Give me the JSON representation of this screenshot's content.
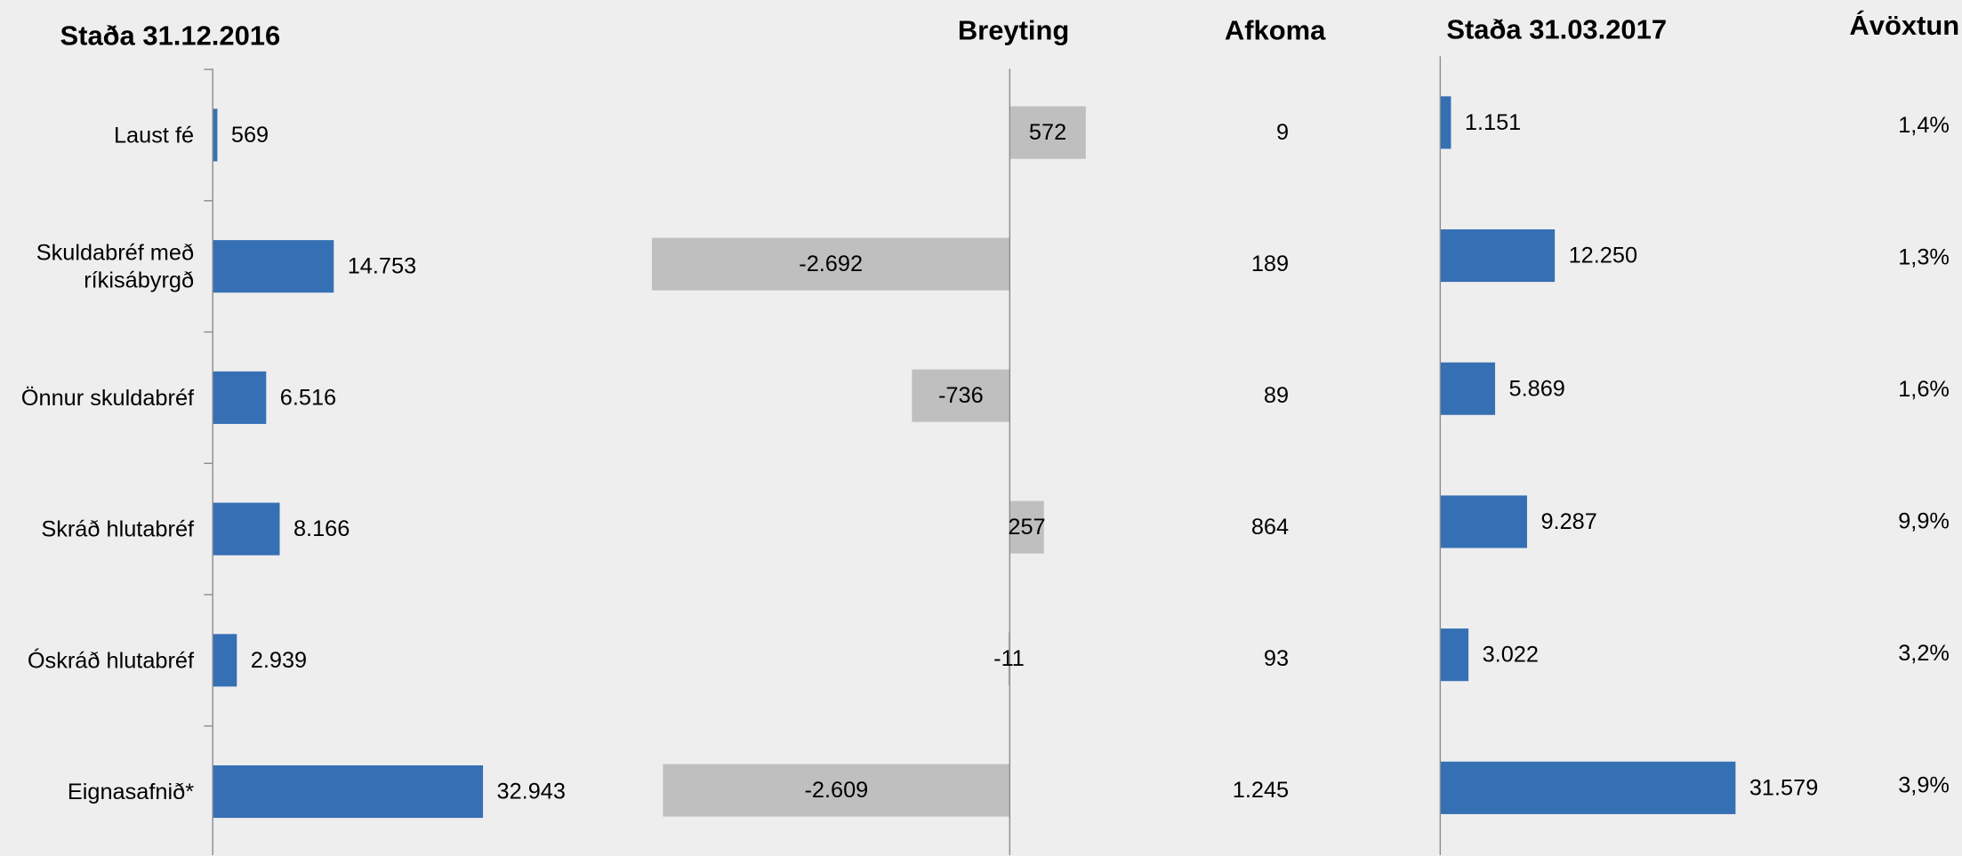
{
  "chart_data": [
    {
      "type": "bar",
      "orientation": "horizontal",
      "title": "Staða 31.12.2016",
      "categories": [
        "Laust fé",
        "Skuldabréf með ríkisábyrgð",
        "Önnur skuldabréf",
        "Skráð hlutabréf",
        "Óskráð hlutabréf",
        "Eignasafnið*"
      ],
      "values": [
        569,
        14753,
        6516,
        8166,
        2939,
        32943
      ],
      "value_labels": [
        "569",
        "14.753",
        "6.516",
        "8.166",
        "2.939",
        "32.943"
      ],
      "color": "#3670b4",
      "xlim": [
        0,
        60000
      ]
    },
    {
      "type": "bar",
      "orientation": "horizontal",
      "title": "Breyting",
      "values": [
        572,
        -2692,
        -736,
        257,
        -11,
        -2609
      ],
      "value_labels": [
        "572",
        "-2.692",
        "-736",
        "257",
        "-11",
        "-2.609"
      ],
      "color": "#bfbfbf",
      "xlim": [
        -3000,
        1000
      ]
    },
    {
      "type": "table",
      "title": "Afkoma",
      "values": [
        9,
        189,
        89,
        864,
        93,
        1245
      ],
      "value_labels": [
        "9",
        "189",
        "89",
        "864",
        "93",
        "1.245"
      ]
    },
    {
      "type": "bar",
      "orientation": "horizontal",
      "title": "Staða 31.03.2017",
      "values": [
        1151,
        12250,
        5869,
        9287,
        3022,
        31579
      ],
      "value_labels": [
        "1.151",
        "12.250",
        "5.869",
        "9.287",
        "3.022",
        "31.579"
      ],
      "color": "#3670b4",
      "xlim": [
        0,
        50000
      ]
    },
    {
      "type": "table",
      "title": "Ávöxtun",
      "values": [
        1.4,
        1.3,
        1.6,
        9.9,
        3.2,
        3.9
      ],
      "value_labels": [
        "1,4%",
        "1,3%",
        "1,6%",
        "9,9%",
        "3,2%",
        "3,9%"
      ]
    }
  ]
}
